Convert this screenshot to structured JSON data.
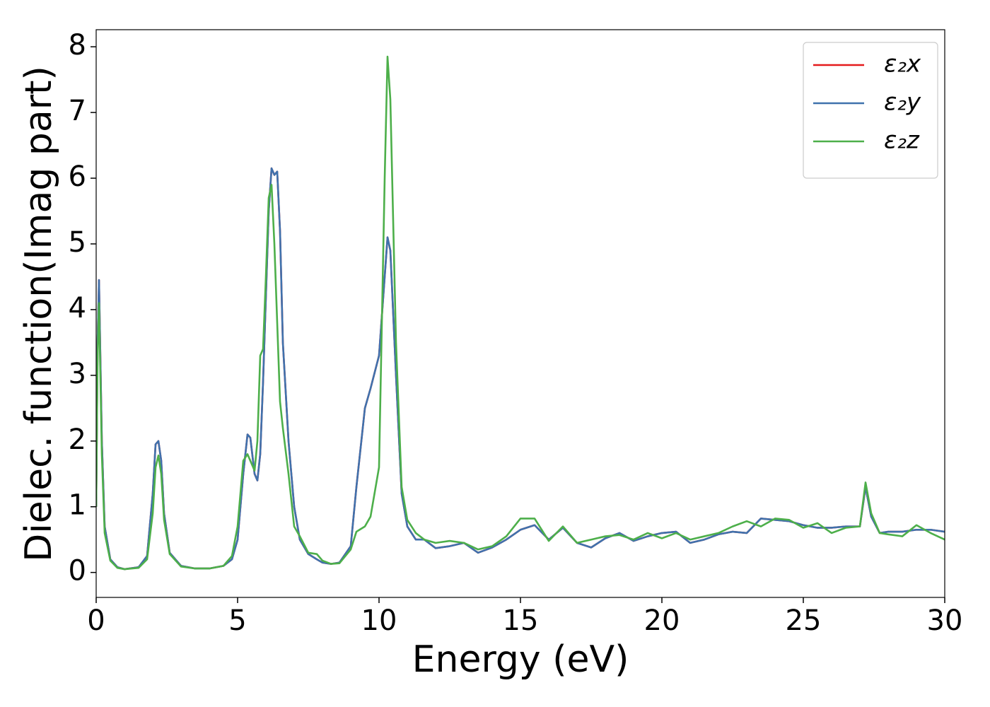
{
  "chart_data": {
    "type": "line",
    "xlabel": "Energy (eV)",
    "ylabel": "Dielec. function(Imag part)",
    "x": [
      0,
      0.05,
      0.1,
      0.2,
      0.3,
      0.5,
      0.75,
      1.0,
      1.5,
      1.8,
      2.0,
      2.1,
      2.2,
      2.3,
      2.4,
      2.6,
      3.0,
      3.5,
      4.0,
      4.5,
      4.8,
      5.0,
      5.2,
      5.35,
      5.45,
      5.6,
      5.7,
      5.8,
      5.9,
      6.0,
      6.1,
      6.2,
      6.3,
      6.4,
      6.5,
      6.6,
      6.8,
      7.0,
      7.2,
      7.5,
      7.8,
      8.0,
      8.3,
      8.6,
      9.0,
      9.2,
      9.5,
      9.7,
      10.0,
      10.2,
      10.3,
      10.4,
      10.6,
      10.8,
      11.0,
      11.3,
      11.6,
      12.0,
      12.5,
      13.0,
      13.5,
      14,
      14.5,
      15,
      15.5,
      16,
      16.5,
      17,
      17.5,
      18,
      18.5,
      19,
      19.5,
      20,
      20.5,
      21,
      21.5,
      22,
      22.5,
      23,
      23.5,
      24,
      24.5,
      25,
      25.5,
      26,
      26.5,
      27,
      27.2,
      27.4,
      27.7,
      28,
      28.5,
      29,
      29.5,
      30
    ],
    "series": [
      {
        "name": "ε₂x",
        "color": "#e41a1c",
        "values": [
          1.0,
          3.5,
          4.45,
          2.0,
          0.7,
          0.2,
          0.08,
          0.05,
          0.08,
          0.25,
          1.2,
          1.95,
          2.0,
          1.7,
          0.9,
          0.3,
          0.1,
          0.06,
          0.06,
          0.1,
          0.2,
          0.5,
          1.5,
          2.1,
          2.05,
          1.5,
          1.4,
          1.8,
          2.9,
          4.2,
          5.5,
          6.15,
          6.05,
          6.1,
          5.2,
          3.5,
          2.0,
          1.0,
          0.5,
          0.28,
          0.2,
          0.15,
          0.13,
          0.15,
          0.4,
          1.3,
          2.5,
          2.8,
          3.3,
          4.5,
          5.1,
          4.9,
          3.0,
          1.2,
          0.7,
          0.5,
          0.5,
          0.37,
          0.4,
          0.45,
          0.3,
          0.38,
          0.5,
          0.65,
          0.72,
          0.5,
          0.68,
          0.45,
          0.38,
          0.52,
          0.6,
          0.48,
          0.55,
          0.6,
          0.62,
          0.45,
          0.5,
          0.58,
          0.62,
          0.6,
          0.82,
          0.8,
          0.78,
          0.72,
          0.68,
          0.68,
          0.7,
          0.7,
          1.3,
          0.85,
          0.6,
          0.62,
          0.62,
          0.65,
          0.65,
          0.62
        ]
      },
      {
        "name": "ε₂y",
        "color": "#3f72ad",
        "values": [
          1.0,
          3.5,
          4.45,
          2.0,
          0.7,
          0.2,
          0.08,
          0.05,
          0.08,
          0.25,
          1.2,
          1.95,
          2.0,
          1.7,
          0.9,
          0.3,
          0.1,
          0.06,
          0.06,
          0.1,
          0.2,
          0.5,
          1.5,
          2.1,
          2.05,
          1.5,
          1.4,
          1.8,
          2.9,
          4.2,
          5.5,
          6.15,
          6.05,
          6.1,
          5.2,
          3.5,
          2.0,
          1.0,
          0.5,
          0.28,
          0.2,
          0.15,
          0.13,
          0.15,
          0.4,
          1.3,
          2.5,
          2.8,
          3.3,
          4.5,
          5.1,
          4.9,
          3.0,
          1.2,
          0.7,
          0.5,
          0.5,
          0.37,
          0.4,
          0.45,
          0.3,
          0.38,
          0.5,
          0.65,
          0.72,
          0.5,
          0.68,
          0.45,
          0.38,
          0.52,
          0.6,
          0.48,
          0.55,
          0.6,
          0.62,
          0.45,
          0.5,
          0.58,
          0.62,
          0.6,
          0.82,
          0.8,
          0.78,
          0.72,
          0.68,
          0.68,
          0.7,
          0.7,
          1.3,
          0.85,
          0.6,
          0.62,
          0.62,
          0.65,
          0.65,
          0.62
        ]
      },
      {
        "name": "ε₂z",
        "color": "#4daf4a",
        "values": [
          1.0,
          3.3,
          4.1,
          1.8,
          0.6,
          0.18,
          0.07,
          0.05,
          0.07,
          0.2,
          0.9,
          1.6,
          1.78,
          1.5,
          0.8,
          0.28,
          0.09,
          0.06,
          0.06,
          0.1,
          0.25,
          0.7,
          1.7,
          1.8,
          1.7,
          1.55,
          2.0,
          3.3,
          3.4,
          4.5,
          5.7,
          5.9,
          5.0,
          3.8,
          2.6,
          2.2,
          1.5,
          0.7,
          0.55,
          0.3,
          0.28,
          0.18,
          0.13,
          0.14,
          0.35,
          0.62,
          0.7,
          0.85,
          1.6,
          6.0,
          7.85,
          7.2,
          3.5,
          1.3,
          0.8,
          0.6,
          0.5,
          0.45,
          0.48,
          0.45,
          0.35,
          0.4,
          0.55,
          0.82,
          0.82,
          0.48,
          0.7,
          0.45,
          0.5,
          0.55,
          0.57,
          0.5,
          0.6,
          0.52,
          0.6,
          0.5,
          0.55,
          0.6,
          0.7,
          0.78,
          0.7,
          0.82,
          0.8,
          0.68,
          0.75,
          0.6,
          0.68,
          0.7,
          1.37,
          0.9,
          0.6,
          0.58,
          0.55,
          0.72,
          0.6,
          0.5
        ]
      }
    ],
    "xlim": [
      0,
      30
    ],
    "xticks": [
      0,
      5,
      10,
      15,
      20,
      25,
      30
    ],
    "ylim": [
      -0.38,
      8.26
    ],
    "yticks": [
      0,
      1,
      2,
      3,
      4,
      5,
      6,
      7,
      8
    ],
    "grid": false,
    "legend": "upper right"
  }
}
